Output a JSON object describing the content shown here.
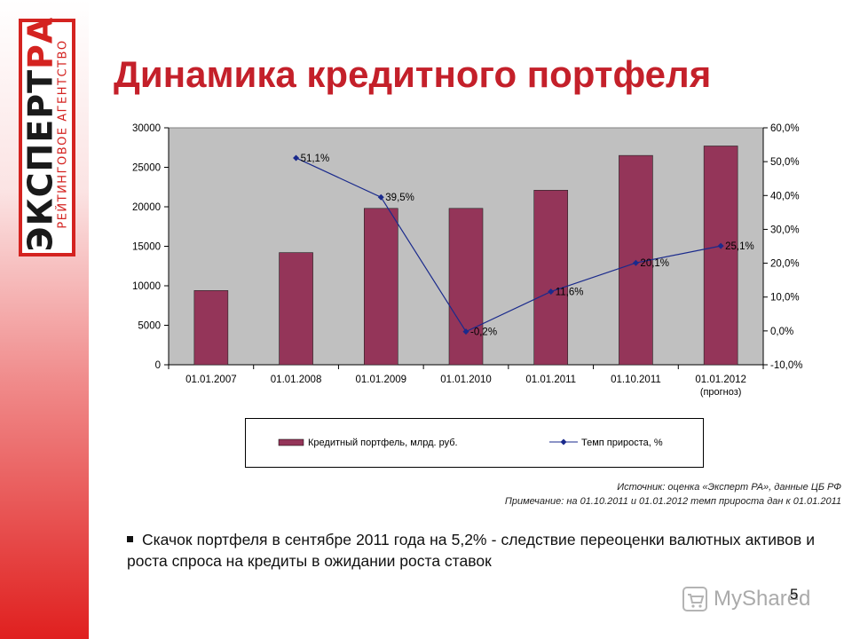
{
  "logo": {
    "line1a": "ЭКСПЕРТ",
    "line1b": "РА",
    "line2": "РЕЙТИНГОВОЕ АГЕНТСТВО"
  },
  "title": "Динамика кредитного портфеля",
  "chart_data": {
    "type": "bar",
    "categories": [
      "01.01.2007",
      "01.01.2008",
      "01.01.2009",
      "01.01.2010",
      "01.01.2011",
      "01.10.2011",
      "01.01.2012"
    ],
    "category_notes": [
      "",
      "",
      "",
      "",
      "",
      "",
      "(прогноз)"
    ],
    "series": [
      {
        "name": "Кредитный портфель, млрд. руб.",
        "type": "bar",
        "axis": "left",
        "color": "#943559",
        "values": [
          9400,
          14200,
          19800,
          19800,
          22100,
          26500,
          27700
        ]
      },
      {
        "name": "Темп прироста, %",
        "type": "line",
        "axis": "right",
        "color": "#1a2a8c",
        "values": [
          null,
          51.1,
          39.5,
          -0.2,
          11.6,
          20.1,
          25.1
        ],
        "labels": [
          "",
          "51,1%",
          "39,5%",
          "-0,2%",
          "11,6%",
          "20,1%",
          "25,1%"
        ]
      }
    ],
    "y_left": {
      "min": 0,
      "max": 30000,
      "ticks": [
        "0",
        "5000",
        "10000",
        "15000",
        "20000",
        "25000",
        "30000"
      ]
    },
    "y_right": {
      "min": -10,
      "max": 60,
      "ticks": [
        "-10,0%",
        "0,0%",
        "10,0%",
        "20,0%",
        "30,0%",
        "40,0%",
        "50,0%",
        "60,0%"
      ]
    },
    "plot_background": "#c0c0c0",
    "grid": false,
    "legend_position": "bottom"
  },
  "source": {
    "line1": "Источник: оценка «Эксперт РА», данные ЦБ РФ",
    "line2": "Примечание: на 01.10.2011 и 01.01.2012 темп прироста дан к 01.01.2011"
  },
  "bullet": "Скачок портфеля в сентябре 2011 года на 5,2%  - следствие переоценки валютных активов и роста спроса на кредиты в ожидании роста ставок",
  "watermark": {
    "icon": "cart-icon",
    "text": "MyShared"
  },
  "page_number": "5"
}
